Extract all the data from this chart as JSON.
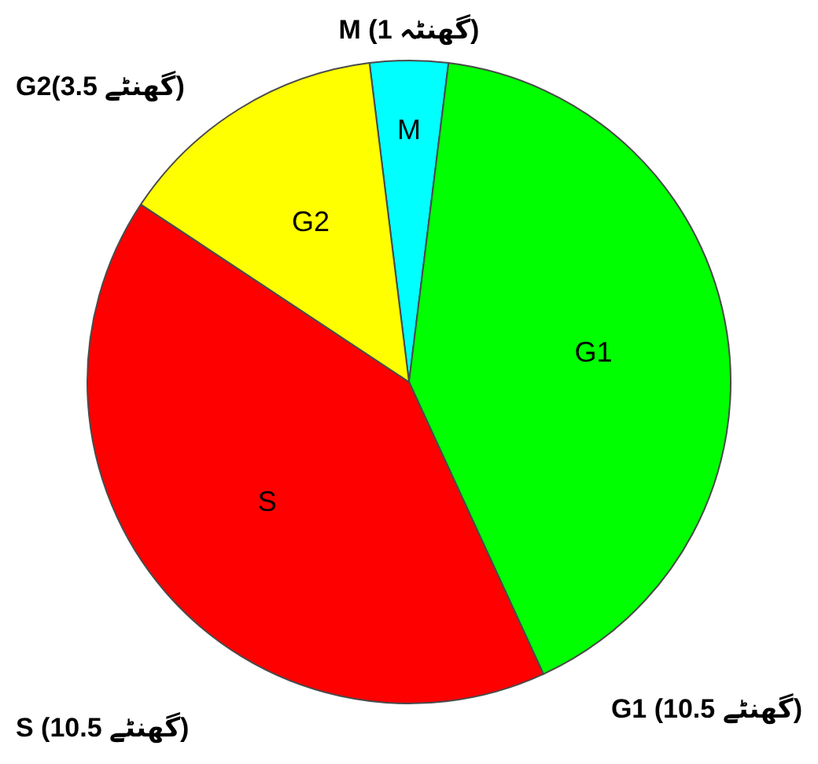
{
  "chart_data": {
    "type": "pie",
    "categories": [
      "M",
      "G1",
      "S",
      "G2"
    ],
    "values": [
      1,
      10.5,
      10.5,
      3.5
    ],
    "colors": [
      "#00ffff",
      "#00ff00",
      "#ff0000",
      "#ffff00"
    ],
    "value_labels": [
      "M (1 گھنٹہ)",
      "G1 (10.5 گھنٹے)",
      "S (10.5 گھنٹے)",
      "G2(3.5 گھنٹے)"
    ]
  }
}
